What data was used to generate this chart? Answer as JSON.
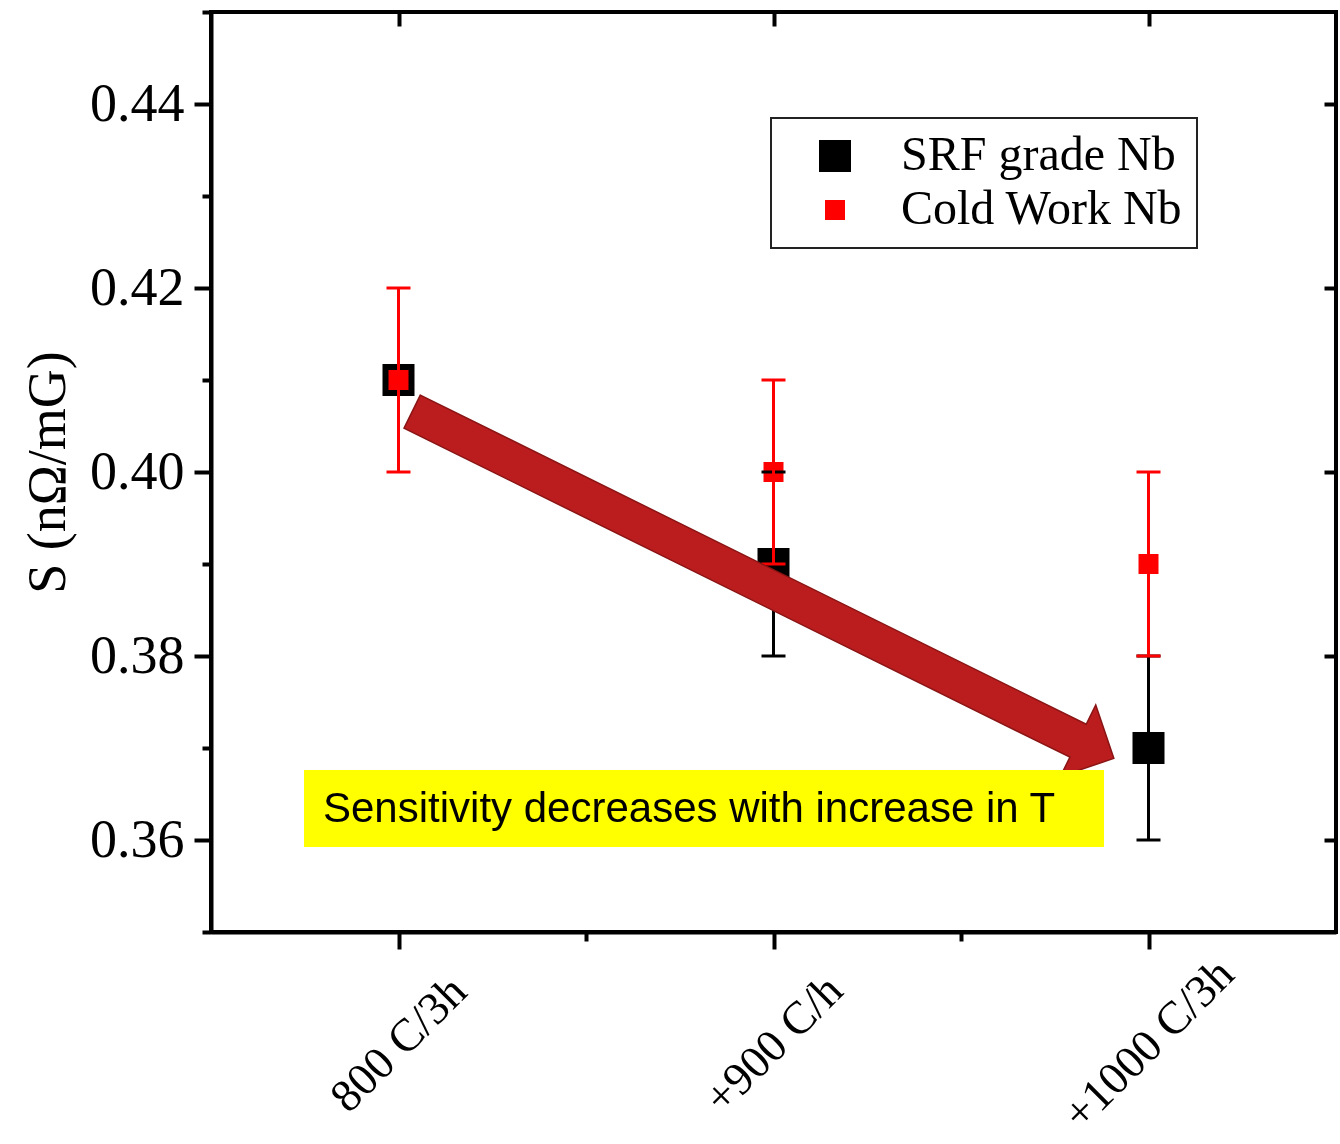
{
  "chart_data": {
    "type": "scatter",
    "ylabel": "S (nΩ/mG)",
    "categories": [
      "800 C/3h",
      "+900 C/h",
      "+1000 C/3h"
    ],
    "series": [
      {
        "name": "SRF grade Nb",
        "color": "#000000",
        "values": [
          0.41,
          0.39,
          0.37
        ],
        "errors": [
          null,
          0.01,
          0.01
        ]
      },
      {
        "name": "Cold Work Nb",
        "color": "#ff0000",
        "values": [
          0.41,
          0.4,
          0.39
        ],
        "errors": [
          0.01,
          0.01,
          0.01
        ]
      }
    ],
    "ylim": [
      0.35,
      0.45
    ],
    "yticks": [
      {
        "value": 0.35,
        "label": null
      },
      0.36,
      {
        "value": 0.37,
        "label": null
      },
      0.38,
      {
        "value": 0.39,
        "label": null
      },
      {
        "value": 0.4,
        "label": "0.40"
      },
      {
        "value": 0.41,
        "label": null
      },
      0.42,
      {
        "value": 0.43,
        "label": null
      },
      0.44,
      {
        "value": 0.45,
        "label": null
      }
    ],
    "legend": "top right",
    "marker": "square",
    "annotations": [
      "Sensitivity decreases with increase in T"
    ]
  }
}
